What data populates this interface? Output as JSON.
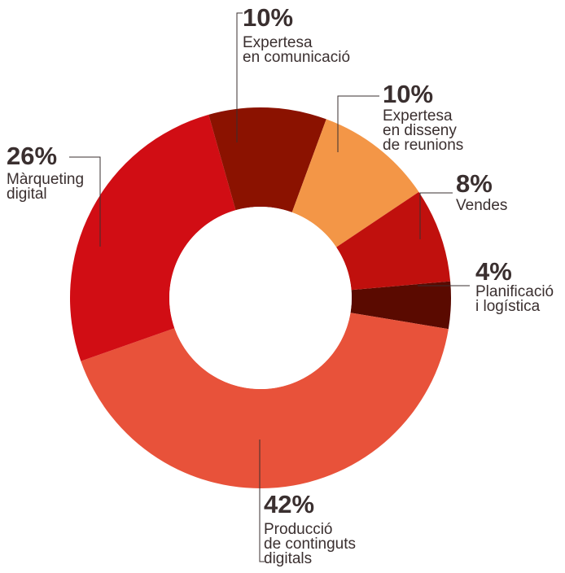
{
  "chart_data": {
    "type": "pie",
    "style": "donut",
    "slices": [
      {
        "name": "Planificació\ni logística",
        "value": 4,
        "label": "4%",
        "color": "#5a0a00"
      },
      {
        "name": "Producció\nde continguts\ndigitals",
        "value": 42,
        "label": "42%",
        "color": "#e8523a"
      },
      {
        "name": "Màrqueting\ndigital",
        "value": 26,
        "label": "26%",
        "color": "#d10d14"
      },
      {
        "name": "Expertesa\nen comunicació",
        "value": 10,
        "label": "10%",
        "color": "#8b1200"
      },
      {
        "name": "Expertesa\nen disseny\nde reunions",
        "value": 10,
        "label": "10%",
        "color": "#f39647"
      },
      {
        "name": "Vendes",
        "value": 8,
        "label": "8%",
        "color": "#c0100d"
      }
    ]
  }
}
